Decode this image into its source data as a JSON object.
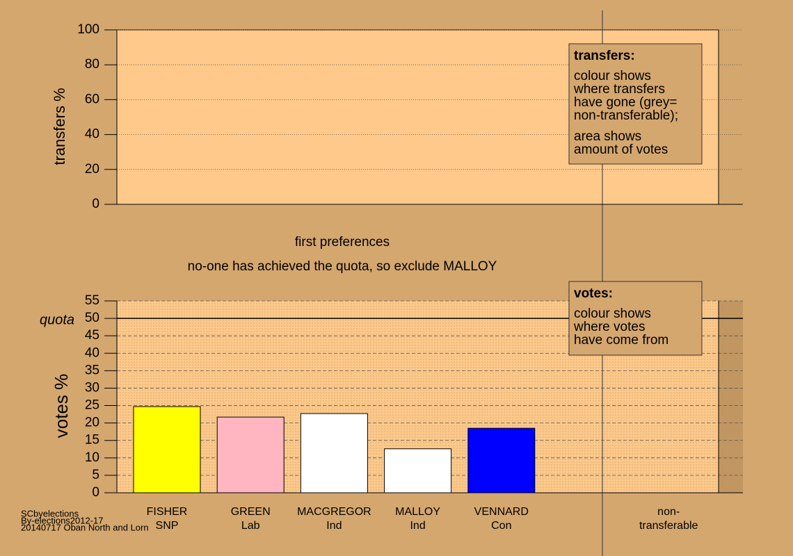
{
  "footer": [
    "SCbyelections",
    "By-elections2012-17",
    "20140717 Oban North and Lorn"
  ],
  "chart_data": [
    {
      "type": "bar",
      "ylabel": "transfers %",
      "ylim": [
        0,
        100
      ],
      "yticks": [
        0,
        20,
        40,
        60,
        80,
        100
      ],
      "grid": true,
      "legend": {
        "title": "transfers:",
        "paragraphs": [
          [
            "colour shows",
            "where transfers",
            "have gone (grey=",
            "non-transferable);"
          ],
          [
            "area shows",
            "amount of votes"
          ]
        ]
      }
    },
    {
      "type": "bar",
      "title": "first preferences",
      "subtitle": "no-one has achieved the quota, so exclude MALLOY",
      "ylabel": "votes %",
      "ylim": [
        0,
        55
      ],
      "yticks": [
        0,
        5,
        10,
        15,
        20,
        25,
        30,
        35,
        40,
        45,
        50,
        55
      ],
      "grid": true,
      "quota": {
        "label": "quota",
        "value": 50
      },
      "categories": [
        [
          "FISHER",
          "SNP"
        ],
        [
          "GREEN",
          "Lab"
        ],
        [
          "MACGREGOR",
          "Ind"
        ],
        [
          "MALLOY",
          "Ind"
        ],
        [
          "VENNARD",
          "Con"
        ],
        [
          "non-",
          "transferable"
        ]
      ],
      "values": [
        24.7,
        21.7,
        22.7,
        12.6,
        18.5,
        null
      ],
      "colors": [
        "#ffff00",
        "#ffb6c1",
        "#ffffff",
        "#ffffff",
        "#0000ff",
        "#999999"
      ],
      "legend": {
        "title": "votes:",
        "paragraphs": [
          [
            "colour shows",
            "where votes",
            "have come from"
          ]
        ]
      }
    }
  ]
}
